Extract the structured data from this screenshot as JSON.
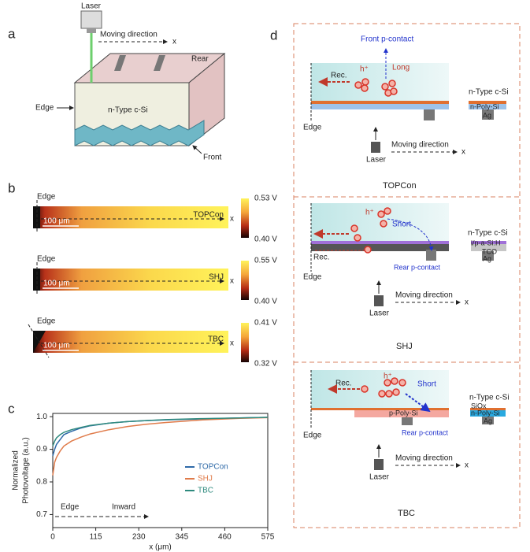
{
  "panel_labels": [
    "a",
    "b",
    "c",
    "d"
  ],
  "panel_a": {
    "laser": "Laser",
    "moving_direction": "Moving direction",
    "axis": "x",
    "rear": "Rear",
    "edge": "Edge",
    "material": "n-Type c-Si",
    "front": "Front"
  },
  "panel_b": {
    "edge": "Edge",
    "scale_bar": "100 μm",
    "axis": "x",
    "maps": [
      {
        "label": "TOPCon",
        "max": "0.53 V",
        "min": "0.40 V"
      },
      {
        "label": "SHJ",
        "max": "0.55 V",
        "min": "0.40 V"
      },
      {
        "label": "TBC",
        "max": "0.41 V",
        "min": "0.32 V"
      }
    ]
  },
  "chart_data": {
    "type": "line",
    "x_label": "x (μm)",
    "y_label": [
      "Normalized",
      "Photovoltage (a.u.)"
    ],
    "x": [
      0,
      5,
      10,
      20,
      30,
      50,
      75,
      100,
      150,
      200,
      250,
      300,
      400,
      500,
      575
    ],
    "series": [
      {
        "name": "TOPCon",
        "color": "#2f6aa8",
        "values": [
          0.88,
          0.9,
          0.915,
          0.93,
          0.945,
          0.955,
          0.965,
          0.972,
          0.98,
          0.985,
          0.988,
          0.99,
          0.993,
          0.996,
          0.998
        ]
      },
      {
        "name": "SHJ",
        "color": "#e07b4a",
        "values": [
          0.82,
          0.86,
          0.875,
          0.895,
          0.91,
          0.925,
          0.937,
          0.947,
          0.96,
          0.97,
          0.977,
          0.982,
          0.99,
          0.995,
          0.997
        ]
      },
      {
        "name": "TBC",
        "color": "#2e8a7e",
        "values": [
          0.91,
          0.925,
          0.935,
          0.945,
          0.952,
          0.96,
          0.967,
          0.973,
          0.98,
          0.985,
          0.988,
          0.991,
          0.994,
          0.996,
          0.998
        ]
      }
    ],
    "xlim": [
      0,
      575
    ],
    "xticks": [
      0,
      115,
      230,
      345,
      460,
      575
    ],
    "ylim": [
      0.66,
      1.01
    ],
    "yticks": [
      0.7,
      0.8,
      0.9,
      {
        "value": 1,
        "label": "1.0"
      }
    ],
    "annotations": [
      "Edge",
      "Inward"
    ]
  },
  "panel_d": {
    "topcon": {
      "front_contact": "Front p-contact",
      "hole": "h⁺",
      "long": "Long",
      "rec": "Rec.",
      "bulk": "n-Type c-Si",
      "poly": "n-Poly-Si",
      "ag": "Ag",
      "edge": "Edge",
      "moving_direction": "Moving direction",
      "axis": "x",
      "laser": "Laser",
      "title": "TOPCon"
    },
    "shj": {
      "hole": "h⁺",
      "short": "Short",
      "rec": "Rec.",
      "bulk": "n-Type c-Si",
      "layer": "i/p-a-Si:H",
      "tco": "TCO",
      "ag": "Ag",
      "rear_contact": "Rear p-contact",
      "edge": "Edge",
      "moving_direction": "Moving direction",
      "axis": "x",
      "laser": "Laser",
      "title": "SHJ"
    },
    "tbc": {
      "hole": "h⁺",
      "rec": "Rec.",
      "short": "Short",
      "bulk": "n-Type c-Si",
      "oxide": "SiOx",
      "poly_n": "n-Poly-Si",
      "ag": "Ag",
      "poly_p": "p-Poly-Si",
      "rear_contact": "Rear p-contact",
      "edge": "Edge",
      "moving_direction": "Moving direction",
      "axis": "x",
      "laser": "Laser",
      "title": "TBC"
    }
  }
}
